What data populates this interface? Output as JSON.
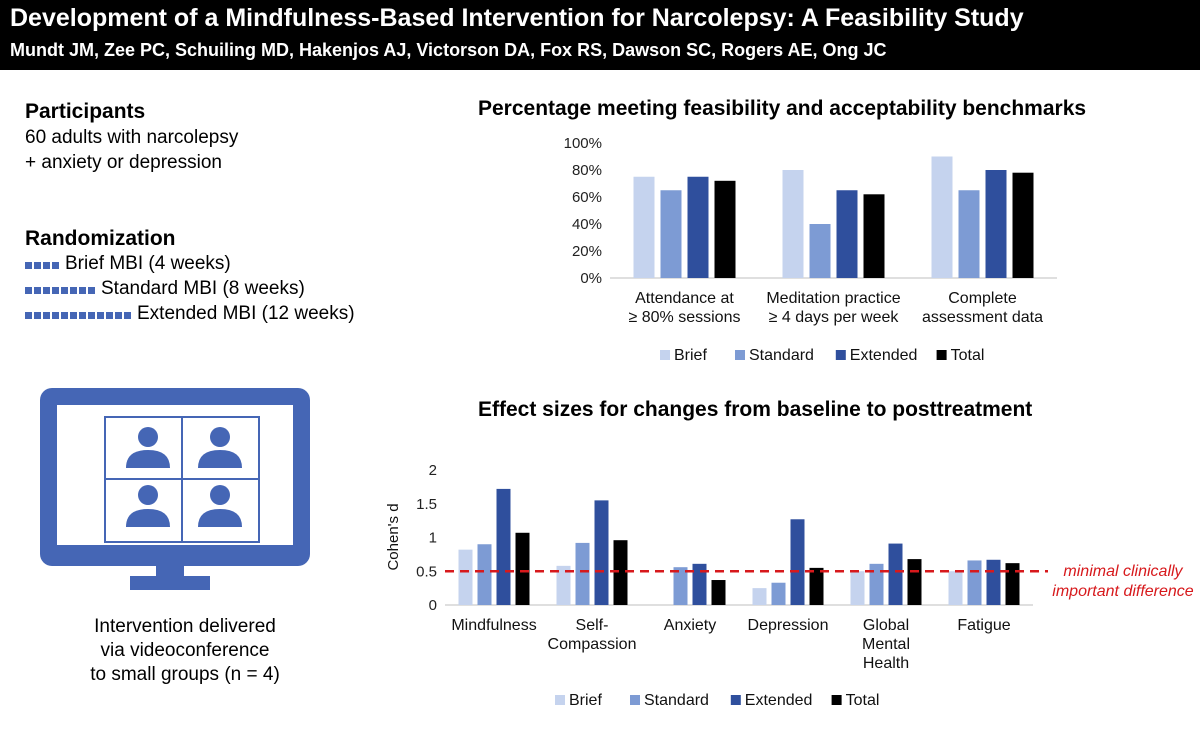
{
  "header": {
    "title": "Development of a Mindfulness-Based Intervention for Narcolepsy: A Feasibility Study",
    "authors": "Mundt JM, Zee PC, Schuiling MD, Hakenjos AJ, Victorson DA, Fox RS, Dawson SC, Rogers AE, Ong JC"
  },
  "participants": {
    "title": "Participants",
    "line1": "60 adults with narcolepsy",
    "line2": "+ anxiety or depression"
  },
  "randomization": {
    "title": "Randomization",
    "arms": [
      {
        "label": "Brief MBI (4 weeks)",
        "weeks": 4
      },
      {
        "label": "Standard MBI (8 weeks)",
        "weeks": 8
      },
      {
        "label": "Extended MBI (12 weeks)",
        "weeks": 12
      }
    ]
  },
  "intervention": {
    "caption_lines": [
      "Intervention delivered",
      "via videoconference",
      "to small groups (n = 4)"
    ],
    "icon": "videoconference-monitor-icon"
  },
  "colors": {
    "brief": "#c5d3ee",
    "standard": "#7d9bd4",
    "extended": "#2f4f9d",
    "total": "#000000",
    "icon_blue": "#4566b5",
    "reference_line": "#d7191c"
  },
  "chart_data": [
    {
      "type": "bar",
      "title": "Percentage meeting feasibility and acceptability benchmarks",
      "categories": [
        [
          "Attendance at",
          "≥ 80% sessions"
        ],
        [
          "Meditation practice",
          "≥ 4 days per week"
        ],
        [
          "Complete",
          "assessment data"
        ]
      ],
      "series": [
        {
          "name": "Brief",
          "values": [
            75,
            80,
            90
          ]
        },
        {
          "name": "Standard",
          "values": [
            65,
            40,
            65
          ]
        },
        {
          "name": "Extended",
          "values": [
            75,
            65,
            80
          ]
        },
        {
          "name": "Total",
          "values": [
            72,
            62,
            78
          ]
        }
      ],
      "ylim": [
        0,
        100
      ],
      "yticks": [
        0,
        20,
        40,
        60,
        80,
        100
      ],
      "ytick_labels": [
        "0%",
        "20%",
        "40%",
        "60%",
        "80%",
        "100%"
      ],
      "xlabel": "",
      "ylabel": "",
      "legend": "bottom"
    },
    {
      "type": "bar",
      "title": "Effect sizes for changes from baseline to posttreatment",
      "categories": [
        [
          "Mindfulness"
        ],
        [
          "Self-",
          "Compassion"
        ],
        [
          "Anxiety"
        ],
        [
          "Depression"
        ],
        [
          "Global",
          "Mental",
          "Health"
        ],
        [
          "Fatigue"
        ]
      ],
      "series": [
        {
          "name": "Brief",
          "values": [
            0.82,
            0.58,
            null,
            0.25,
            0.5,
            0.5
          ]
        },
        {
          "name": "Standard",
          "values": [
            0.9,
            0.92,
            0.56,
            0.33,
            0.61,
            0.66
          ]
        },
        {
          "name": "Extended",
          "values": [
            1.72,
            1.55,
            0.61,
            1.27,
            0.91,
            0.67
          ]
        },
        {
          "name": "Total",
          "values": [
            1.07,
            0.96,
            0.37,
            0.55,
            0.68,
            0.62
          ]
        }
      ],
      "ylim": [
        0,
        2
      ],
      "yticks": [
        0,
        0.5,
        1,
        1.5,
        2
      ],
      "ytick_labels": [
        "0",
        "0.5",
        "1",
        "1.5",
        "2"
      ],
      "xlabel": "",
      "ylabel": "Cohen's d",
      "reference_line": {
        "value": 0.5,
        "label_lines": [
          "minimal clinically",
          "important difference"
        ]
      },
      "legend": "bottom"
    }
  ]
}
